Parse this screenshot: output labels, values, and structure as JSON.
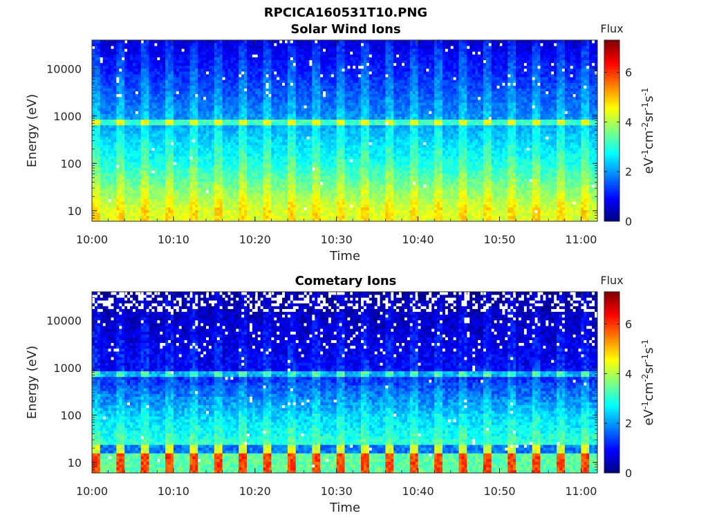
{
  "figure": {
    "title": "RPCICA160531T10.PNG"
  },
  "chart_data": [
    {
      "type": "heatmap",
      "title": "Solar Wind Ions",
      "xlabel": "Time",
      "ylabel": "Energy (eV)",
      "x_ticks": [
        "10:00",
        "10:10",
        "10:20",
        "10:30",
        "10:40",
        "10:50",
        "11:00"
      ],
      "x_range": [
        "10:00",
        "11:02"
      ],
      "y_scale": "log",
      "y_ticks": [
        10,
        100,
        1000,
        10000
      ],
      "y_tick_labels": [
        "10",
        "100",
        "1000",
        "10000"
      ],
      "y_range": [
        6,
        40000
      ],
      "energy_peak_eV": 750,
      "colorbar": {
        "title": "Flux",
        "label": "eV-1cm-2sr-1s-1",
        "ticks": [
          "0",
          "2",
          "4",
          "6"
        ],
        "range": [
          0,
          7.3
        ],
        "colormap": "jet"
      },
      "colormap_colors": [
        "#00007f",
        "#0000ff",
        "#007fff",
        "#00ffff",
        "#7fff7f",
        "#ffff00",
        "#ff7f00",
        "#ff0000",
        "#7f0000"
      ],
      "profile": {
        "description_free": true,
        "flux_at_10eV": 4.4,
        "flux_at_100eV": 3.0,
        "flux_at_1000eV": 2.0,
        "flux_at_peak": 4.0,
        "flux_at_10000eV": 1.2,
        "flux_at_30000eV": 0.8
      }
    },
    {
      "type": "heatmap",
      "title": "Cometary Ions",
      "xlabel": "Time",
      "ylabel": "Energy (eV)",
      "x_ticks": [
        "10:00",
        "10:10",
        "10:20",
        "10:30",
        "10:40",
        "10:50",
        "11:00"
      ],
      "x_range": [
        "10:00",
        "11:02"
      ],
      "y_scale": "log",
      "y_ticks": [
        10,
        100,
        1000,
        10000
      ],
      "y_tick_labels": [
        "10",
        "100",
        "1000",
        "10000"
      ],
      "y_range": [
        6,
        40000
      ],
      "energy_peak_eV": 700,
      "colorbar": {
        "title": "Flux",
        "label": "eV-1cm-2sr-1s-1",
        "ticks": [
          "0",
          "2",
          "4",
          "6"
        ],
        "range": [
          0,
          7.3
        ],
        "colormap": "jet"
      },
      "profile": {
        "flux_at_8eV": 5.4,
        "flux_at_20eV": 3.2,
        "flux_at_100eV": 2.5,
        "flux_at_1000eV": 1.0,
        "flux_at_peak": 3.0,
        "flux_at_10000eV": 0.6,
        "flux_at_30000eV": 0.4
      }
    }
  ]
}
